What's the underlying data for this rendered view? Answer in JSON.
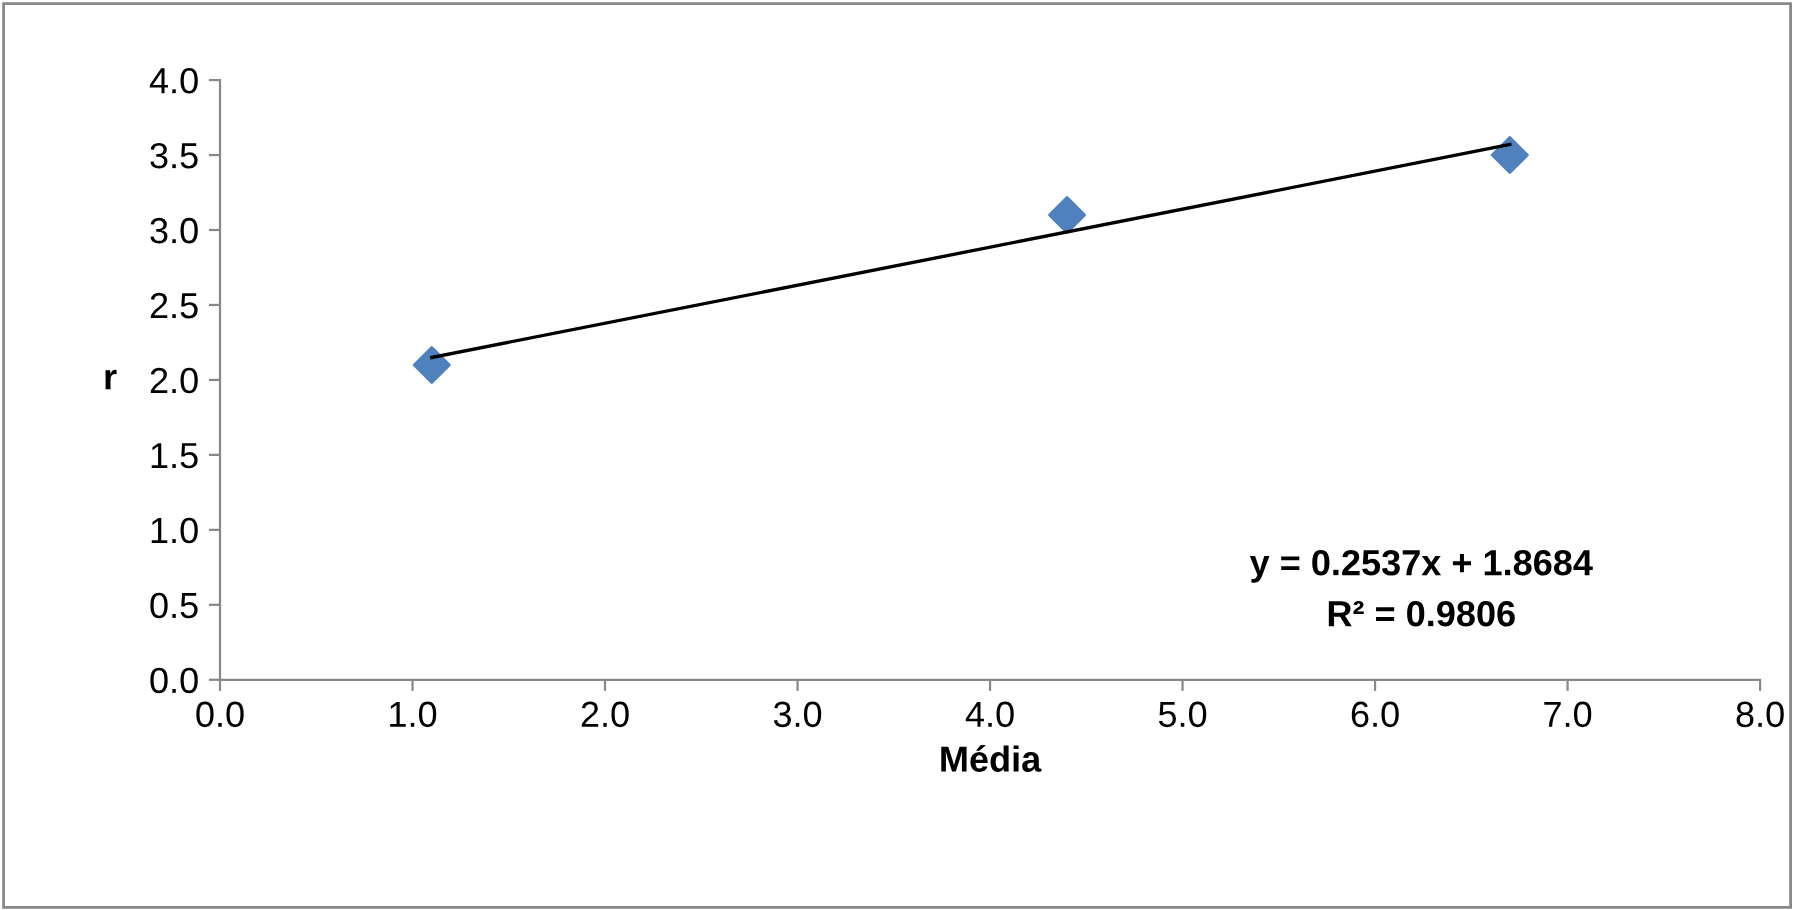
{
  "chart_data": {
    "type": "scatter",
    "xlabel": "Média",
    "ylabel": "r",
    "series": [
      {
        "color": "#4f81bd",
        "marker": "diamond",
        "x": [
          1.1,
          4.4,
          6.7
        ],
        "values": [
          2.1,
          3.1,
          3.5
        ]
      },
      {
        "type": "line",
        "color": "#000000",
        "marker": "none",
        "line_style": "solid",
        "x": [
          1.1,
          6.7
        ],
        "values": [
          2.15,
          3.57
        ]
      }
    ],
    "xlim": [
      0,
      8
    ],
    "xticks": [
      {
        "value": 0,
        "label": "0.0"
      },
      {
        "value": 1,
        "label": "1.0"
      },
      {
        "value": 2,
        "label": "2.0"
      },
      {
        "value": 3,
        "label": "3.0"
      },
      {
        "value": 4,
        "label": "4.0"
      },
      {
        "value": 5,
        "label": "5.0"
      },
      {
        "value": 6,
        "label": "6.0"
      },
      {
        "value": 7,
        "label": "7.0"
      },
      {
        "value": 8,
        "label": "8.0"
      }
    ],
    "ylim": [
      0,
      4
    ],
    "yticks": [
      {
        "value": 0,
        "label": "0.0"
      },
      {
        "value": 0.5,
        "label": "0.5"
      },
      {
        "value": 1,
        "label": "1.0"
      },
      {
        "value": 1.5,
        "label": "1.5"
      },
      {
        "value": 2,
        "label": "2.0"
      },
      {
        "value": 2.5,
        "label": "2.5"
      },
      {
        "value": 3,
        "label": "3.0"
      },
      {
        "value": 3.5,
        "label": "3.5"
      },
      {
        "value": 4,
        "label": "4.0"
      }
    ],
    "grid": false,
    "legend": false,
    "annotations": [
      "y = 0.2537x + 1.8684",
      "R² = 0.9806"
    ]
  }
}
